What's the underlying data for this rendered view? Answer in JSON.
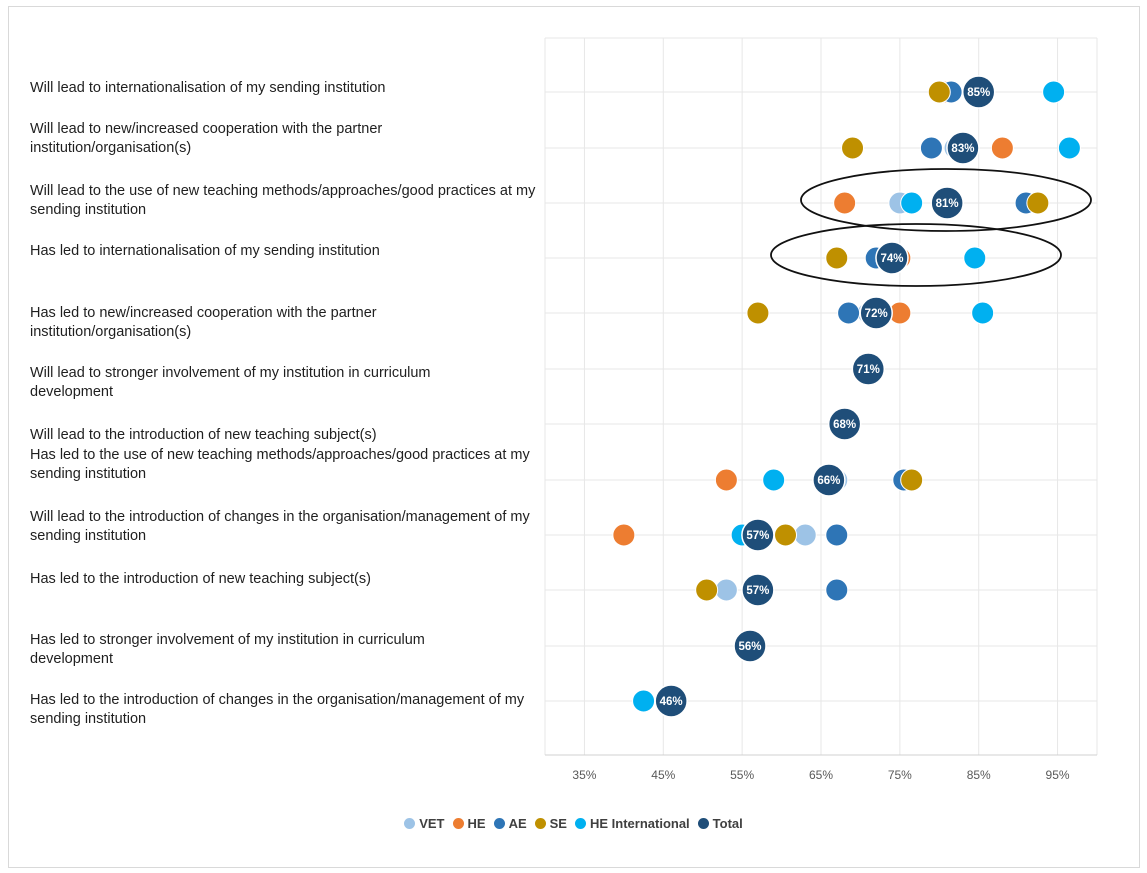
{
  "chart_data": {
    "type": "scatter",
    "categories": [
      "Will lead to internationalisation of my sending institution",
      "Will lead to new/increased cooperation with the partner institution/organisation(s)",
      "Will lead to the use of new teaching methods/approaches/good practices at my sending institution",
      "Has led to internationalisation of my sending institution",
      "Has led to new/increased cooperation with the partner institution/organisation(s)",
      "Will lead to stronger involvement of my institution in curriculum development",
      "Will lead to the introduction of new teaching subject(s)",
      "Has led to the use of new teaching methods/approaches/good practices at my sending institution",
      "Will lead to the introduction of changes in the organisation/management of my sending institution",
      "Has led to the introduction of new teaching subject(s)",
      "Has led to stronger involvement of my institution in curriculum development",
      "Has led to the introduction of changes in the organisation/management of my sending institution"
    ],
    "xlim": [
      30,
      100
    ],
    "x_ticks": [
      "35%",
      "45%",
      "55%",
      "65%",
      "75%",
      "85%",
      "95%"
    ],
    "x_tick_values": [
      35,
      45,
      55,
      65,
      75,
      85,
      95
    ],
    "grid": true,
    "legend_position": "bottom",
    "series": [
      {
        "name": "VET",
        "color": "#9dc3e6",
        "values": [
          81,
          82,
          75,
          75,
          71,
          71,
          68,
          67,
          63,
          53,
          56,
          46
        ]
      },
      {
        "name": "HE",
        "color": "#ed7d31",
        "values": [
          81,
          88,
          68,
          75,
          75,
          71,
          68,
          53,
          40,
          57,
          56,
          46
        ]
      },
      {
        "name": "AE",
        "color": "#2e75b6",
        "values": [
          81.5,
          79,
          91,
          72,
          68.5,
          71,
          68,
          75.5,
          67,
          67,
          56,
          46
        ]
      },
      {
        "name": "SE",
        "color": "#bf9000",
        "values": [
          80,
          69,
          92.5,
          67,
          57,
          71,
          68,
          76.5,
          60.5,
          50.5,
          56,
          46
        ]
      },
      {
        "name": "HE International",
        "color": "#00b0f0",
        "values": [
          94.5,
          96.5,
          76.5,
          84.5,
          85.5,
          71,
          68,
          59,
          55,
          57,
          56,
          42.5
        ]
      },
      {
        "name": "Total",
        "color": "#1f4e79",
        "values": [
          85,
          83,
          81,
          74,
          72,
          71,
          68,
          66,
          57,
          57,
          56,
          46
        ],
        "labels": [
          "85%",
          "83%",
          "81%",
          "74%",
          "72%",
          "71%",
          "68%",
          "66%",
          "57%",
          "57%",
          "56%",
          "46%"
        ]
      }
    ],
    "highlight_ellipses": [
      2,
      3
    ]
  }
}
